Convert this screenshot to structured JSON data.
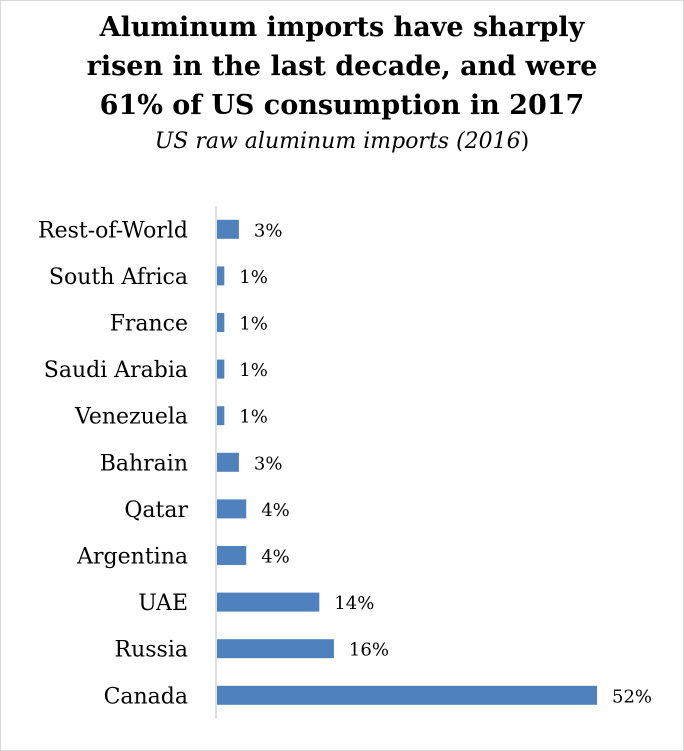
{
  "chart_data": {
    "type": "bar",
    "orientation": "horizontal",
    "title_lines": [
      "Aluminum imports have sharply",
      "risen in the last decade, and were",
      "61% of US consumption in 2017"
    ],
    "subtitle_italic": "US raw aluminum imports (2016",
    "subtitle_tail": ")",
    "categories": [
      "Rest-of-World",
      "South Africa",
      "France",
      "Saudi Arabia",
      "Venezuela",
      "Bahrain",
      "Qatar",
      "Argentina",
      "UAE",
      "Russia",
      "Canada"
    ],
    "values": [
      3,
      1,
      1,
      1,
      1,
      3,
      4,
      4,
      14,
      16,
      52
    ],
    "value_labels": [
      "3%",
      "1%",
      "1%",
      "1%",
      "1%",
      "3%",
      "4%",
      "4%",
      "14%",
      "16%",
      "52%"
    ],
    "unit": "%",
    "xlim": [
      0,
      52
    ],
    "bar_color": "#4f81bd",
    "axis_color": "#bfbfbf",
    "legend": "none",
    "grid": false
  }
}
